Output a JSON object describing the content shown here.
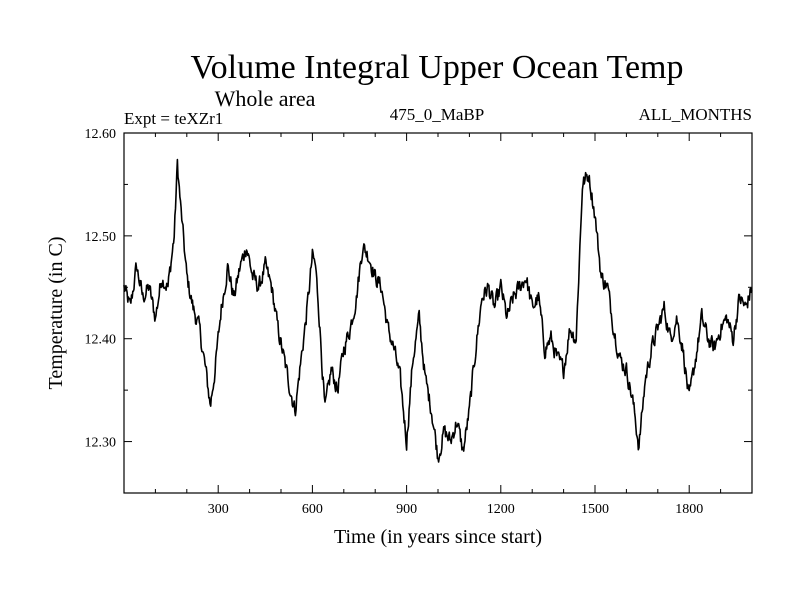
{
  "chart_data": {
    "type": "line",
    "title": "Volume Integral Upper Ocean Temp",
    "subtitle": "Whole area",
    "experiment": "Expt = teXZr1",
    "period": "475_0_MaBP",
    "months": "ALL_MONTHS",
    "xlabel": "Time (in years since start)",
    "ylabel": "Temperature (in C)",
    "xlim": [
      0,
      2000
    ],
    "ylim": [
      12.25,
      12.6
    ],
    "xticks": [
      300,
      600,
      900,
      1200,
      1500,
      1800
    ],
    "xtick_labels": [
      "300",
      "600",
      "900",
      "1200",
      "1500",
      "1800"
    ],
    "yticks": [
      12.3,
      12.4,
      12.5,
      12.6
    ],
    "ytick_labels": [
      "12.30",
      "12.40",
      "12.50",
      "12.60"
    ],
    "series": [
      {
        "name": "Volume Integral Upper Ocean Temp",
        "x": [
          0,
          20,
          40,
          60,
          80,
          100,
          120,
          140,
          160,
          170,
          180,
          200,
          220,
          240,
          260,
          275,
          290,
          310,
          330,
          350,
          370,
          390,
          410,
          430,
          450,
          470,
          490,
          510,
          530,
          545,
          560,
          580,
          600,
          610,
          620,
          640,
          660,
          680,
          700,
          720,
          740,
          760,
          780,
          800,
          820,
          840,
          860,
          880,
          900,
          920,
          940,
          960,
          980,
          1000,
          1020,
          1040,
          1060,
          1080,
          1100,
          1120,
          1140,
          1160,
          1180,
          1200,
          1220,
          1240,
          1260,
          1280,
          1300,
          1320,
          1340,
          1360,
          1380,
          1400,
          1420,
          1440,
          1460,
          1480,
          1500,
          1520,
          1540,
          1560,
          1580,
          1600,
          1620,
          1640,
          1660,
          1680,
          1700,
          1720,
          1740,
          1760,
          1780,
          1800,
          1820,
          1840,
          1860,
          1880,
          1900,
          1920,
          1940,
          1960,
          1980,
          2000
        ],
        "values": [
          12.45,
          12.43,
          12.47,
          12.44,
          12.45,
          12.42,
          12.46,
          12.45,
          12.5,
          12.57,
          12.53,
          12.46,
          12.43,
          12.41,
          12.37,
          12.335,
          12.37,
          12.43,
          12.47,
          12.44,
          12.47,
          12.49,
          12.46,
          12.45,
          12.47,
          12.45,
          12.41,
          12.38,
          12.35,
          12.33,
          12.37,
          12.42,
          12.48,
          12.47,
          12.43,
          12.33,
          12.37,
          12.35,
          12.39,
          12.41,
          12.44,
          12.49,
          12.48,
          12.46,
          12.45,
          12.41,
          12.39,
          12.36,
          12.3,
          12.38,
          12.42,
          12.36,
          12.33,
          12.285,
          12.31,
          12.3,
          12.32,
          12.29,
          12.33,
          12.39,
          12.44,
          12.45,
          12.43,
          12.45,
          12.42,
          12.44,
          12.45,
          12.46,
          12.43,
          12.44,
          12.39,
          12.4,
          12.38,
          12.37,
          12.41,
          12.4,
          12.55,
          12.56,
          12.52,
          12.46,
          12.45,
          12.41,
          12.38,
          12.37,
          12.34,
          12.295,
          12.36,
          12.39,
          12.41,
          12.43,
          12.4,
          12.42,
          12.39,
          12.34,
          12.38,
          12.42,
          12.4,
          12.39,
          12.41,
          12.42,
          12.4,
          12.44,
          12.43,
          12.45
        ]
      }
    ]
  }
}
